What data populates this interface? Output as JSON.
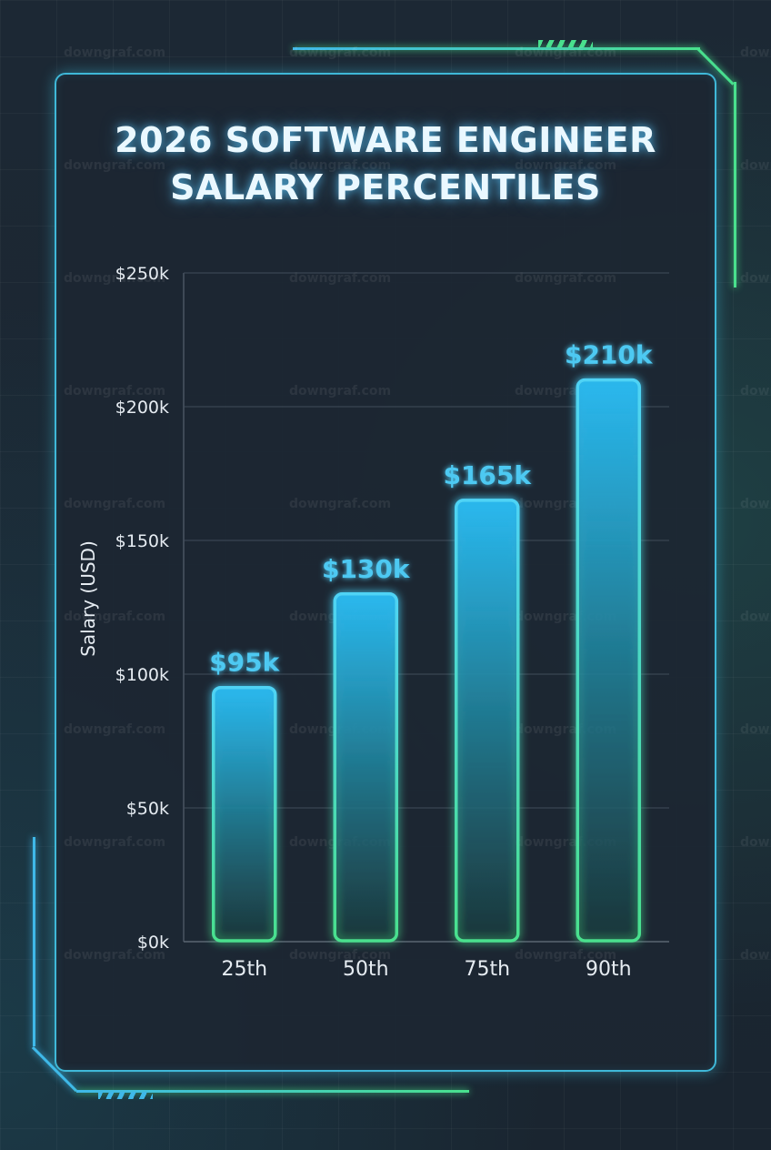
{
  "colors": {
    "accent_cyan": "#4fd3f5",
    "accent_green": "#49e08d",
    "label_cyan": "#4ec9f2",
    "background": "#1b2733",
    "panel_border": "#3fb8d8",
    "gridline": "#4a5563",
    "axis_text": "#e6ecf2"
  },
  "watermark_text": "downgraf.com",
  "chart_data": {
    "type": "bar",
    "title": "2026 SOFTWARE ENGINEER SALARY PERCENTILES",
    "title_lines": [
      "2026 SOFTWARE ENGINEER",
      "SALARY PERCENTILES"
    ],
    "xlabel": "",
    "ylabel": "Salary (USD)",
    "categories": [
      "25th",
      "50th",
      "75th",
      "90th"
    ],
    "values": [
      95,
      130,
      165,
      210
    ],
    "value_unit": "thousand USD",
    "data_labels": [
      "$95k",
      "$130k",
      "$165k",
      "$210k"
    ],
    "ylim": [
      0,
      250
    ],
    "yticks": [
      0,
      50,
      100,
      150,
      200,
      250
    ],
    "ytick_labels": [
      "$0k",
      "$50k",
      "$100k",
      "$150k",
      "$200k",
      "$250k"
    ],
    "grid": true,
    "legend": "none"
  }
}
